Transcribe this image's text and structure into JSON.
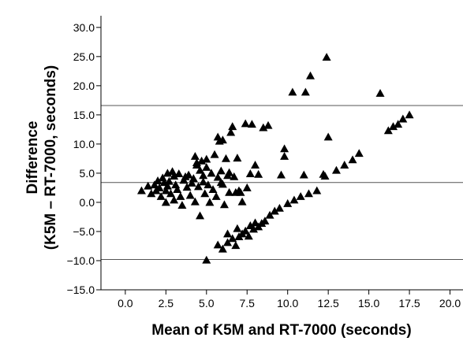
{
  "chart_data": {
    "type": "scatter",
    "xlabel": "Mean of K5M and RT-7000 (seconds)",
    "ylabel_line1": "Difference",
    "ylabel_line2": "(K5M – RT-7000, seconds)",
    "xlim": [
      -1.5,
      20.8
    ],
    "ylim": [
      -15,
      32
    ],
    "x_ticks": [
      "0.0",
      "2.5",
      "5.0",
      "7.5",
      "10.0",
      "12.5",
      "15.0",
      "17.5",
      "20.0"
    ],
    "y_ticks": [
      "30.0",
      "25.0",
      "20.0",
      "15.0",
      "10.0",
      "5.0",
      "0.0",
      "-5.0",
      "-10.0",
      "-15.0"
    ],
    "reference_lines": [
      16.6,
      3.4,
      -9.8
    ],
    "marker": "triangle",
    "marker_color": "#000000",
    "line_color": "#555555",
    "grid": false,
    "points": [
      [
        1.0,
        2.0
      ],
      [
        1.4,
        2.8
      ],
      [
        1.6,
        1.5
      ],
      [
        1.8,
        3.0
      ],
      [
        1.9,
        2.0
      ],
      [
        2.0,
        3.7
      ],
      [
        2.1,
        2.5
      ],
      [
        2.2,
        1.0
      ],
      [
        2.3,
        4.2
      ],
      [
        2.4,
        3.4
      ],
      [
        2.5,
        2.0
      ],
      [
        2.5,
        0.0
      ],
      [
        2.6,
        2.8
      ],
      [
        2.6,
        5.0
      ],
      [
        2.7,
        3.6
      ],
      [
        2.8,
        1.5
      ],
      [
        2.9,
        5.3
      ],
      [
        3.0,
        4.5
      ],
      [
        3.0,
        0.4
      ],
      [
        3.1,
        3.0
      ],
      [
        3.2,
        2.2
      ],
      [
        3.3,
        4.9
      ],
      [
        3.4,
        1.0
      ],
      [
        3.5,
        -0.5
      ],
      [
        3.6,
        3.8
      ],
      [
        3.7,
        4.4
      ],
      [
        3.8,
        2.6
      ],
      [
        3.9,
        4.7
      ],
      [
        4.0,
        1.2
      ],
      [
        4.1,
        3.3
      ],
      [
        4.2,
        4.1
      ],
      [
        4.3,
        7.9
      ],
      [
        4.3,
        0.1
      ],
      [
        4.4,
        6.4
      ],
      [
        4.5,
        2.7
      ],
      [
        4.6,
        5.5
      ],
      [
        4.6,
        -2.3
      ],
      [
        4.7,
        7.1
      ],
      [
        4.8,
        4.6
      ],
      [
        4.9,
        1.5
      ],
      [
        5.0,
        6.0
      ],
      [
        5.0,
        7.4
      ],
      [
        5.1,
        3.0
      ],
      [
        5.2,
        0.0
      ],
      [
        5.3,
        5.0
      ],
      [
        5.4,
        2.2
      ],
      [
        5.5,
        8.2
      ],
      [
        5.6,
        1.0
      ],
      [
        5.7,
        4.3
      ],
      [
        5.7,
        11.2
      ],
      [
        5.8,
        10.5
      ],
      [
        5.9,
        5.4
      ],
      [
        6.0,
        10.7
      ],
      [
        6.0,
        3.1
      ],
      [
        6.1,
        -0.4
      ],
      [
        6.2,
        7.5
      ],
      [
        6.3,
        4.6
      ],
      [
        6.4,
        1.7
      ],
      [
        6.5,
        12.0
      ],
      [
        6.6,
        13.0
      ],
      [
        6.7,
        4.4
      ],
      [
        6.8,
        1.7
      ],
      [
        6.9,
        7.6
      ],
      [
        7.0,
        2.0
      ],
      [
        7.1,
        1.7
      ],
      [
        7.2,
        0.1
      ],
      [
        7.4,
        13.5
      ],
      [
        7.5,
        2.5
      ],
      [
        7.7,
        4.9
      ],
      [
        7.8,
        13.4
      ],
      [
        8.0,
        6.4
      ],
      [
        8.2,
        4.8
      ],
      [
        8.5,
        12.8
      ],
      [
        8.8,
        13.2
      ],
      [
        9.8,
        9.2
      ],
      [
        9.8,
        7.9
      ],
      [
        10.3,
        18.9
      ],
      [
        11.1,
        18.9
      ],
      [
        11.4,
        21.7
      ],
      [
        12.4,
        24.9
      ],
      [
        12.5,
        11.2
      ],
      [
        9.6,
        4.7
      ],
      [
        11.0,
        4.7
      ],
      [
        12.3,
        4.5
      ],
      [
        12.2,
        4.8
      ],
      [
        13.0,
        5.5
      ],
      [
        13.5,
        6.4
      ],
      [
        14.0,
        7.3
      ],
      [
        14.4,
        8.4
      ],
      [
        15.7,
        18.7
      ],
      [
        16.2,
        12.3
      ],
      [
        16.5,
        13.0
      ],
      [
        16.8,
        13.4
      ],
      [
        17.1,
        14.3
      ],
      [
        17.5,
        15.0
      ],
      [
        5.0,
        -9.9
      ],
      [
        5.7,
        -7.3
      ],
      [
        6.0,
        -8.0
      ],
      [
        6.3,
        -6.9
      ],
      [
        6.3,
        -5.4
      ],
      [
        6.6,
        -6.2
      ],
      [
        6.8,
        -7.4
      ],
      [
        6.9,
        -4.5
      ],
      [
        7.0,
        -5.9
      ],
      [
        7.2,
        -5.4
      ],
      [
        7.4,
        -4.9
      ],
      [
        7.6,
        -5.8
      ],
      [
        7.7,
        -4.0
      ],
      [
        7.9,
        -4.6
      ],
      [
        8.0,
        -3.5
      ],
      [
        8.2,
        -4.2
      ],
      [
        8.4,
        -3.6
      ],
      [
        8.6,
        -3.2
      ],
      [
        8.9,
        -2.2
      ],
      [
        9.2,
        -1.5
      ],
      [
        9.5,
        -1.0
      ],
      [
        10.0,
        -0.2
      ],
      [
        10.4,
        0.4
      ],
      [
        10.8,
        1.0
      ],
      [
        11.3,
        1.5
      ],
      [
        11.8,
        2.0
      ],
      [
        5.9,
        3.4
      ],
      [
        4.4,
        6.8
      ],
      [
        6.4,
        5.1
      ],
      [
        4.8,
        3.5
      ]
    ]
  }
}
